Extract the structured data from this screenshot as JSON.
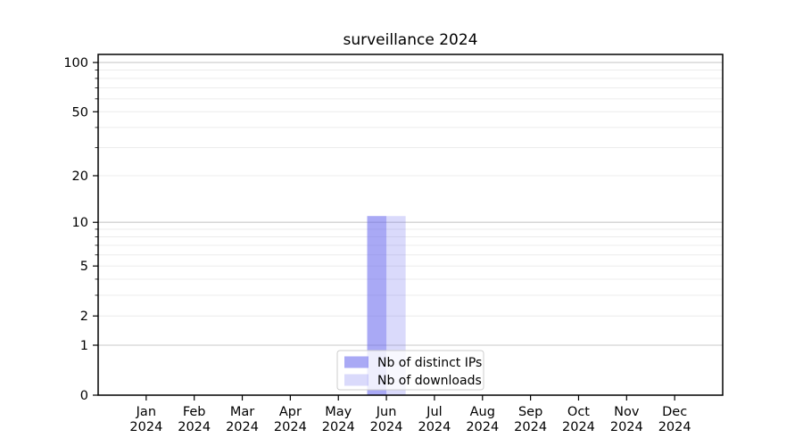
{
  "chart_data": {
    "type": "bar",
    "title": "surveillance 2024",
    "categories": [
      "Jan",
      "Feb",
      "Mar",
      "Apr",
      "May",
      "Jun",
      "Jul",
      "Aug",
      "Sep",
      "Oct",
      "Nov",
      "Dec"
    ],
    "category_year": "2024",
    "series": [
      {
        "name": "Nb of distinct IPs",
        "color": "#6666ee",
        "opacity": 0.56,
        "values": [
          0,
          0,
          0,
          0,
          0,
          11,
          0,
          0,
          0,
          0,
          0,
          0
        ]
      },
      {
        "name": "Nb of downloads",
        "color": "#6666ee",
        "opacity": 0.24,
        "values": [
          0,
          0,
          0,
          0,
          0,
          11,
          0,
          0,
          0,
          0,
          0,
          0
        ]
      }
    ],
    "xlabel": "",
    "ylabel": "",
    "y_scale": "log1p",
    "ylim": [
      0,
      112
    ],
    "y_ticks_labeled": [
      0,
      1,
      2,
      5,
      10,
      20,
      50,
      100
    ],
    "y_gridlines_major": [
      1,
      10,
      100
    ],
    "y_gridlines_minor": [
      2,
      3,
      4,
      5,
      6,
      7,
      8,
      9,
      20,
      30,
      40,
      50,
      60,
      70,
      80,
      90
    ],
    "grid": true,
    "legend": {
      "position": "lower center",
      "entries": [
        "Nb of distinct IPs",
        "Nb of downloads"
      ]
    }
  },
  "colors": {
    "background": "#ffffff",
    "axis": "#000000",
    "tick_text": "#000000",
    "grid_major": "#c9c9c9",
    "grid_minor": "#ececec",
    "legend_border": "#cccccc",
    "legend_bg_rgba": "255,255,255,0.8"
  }
}
